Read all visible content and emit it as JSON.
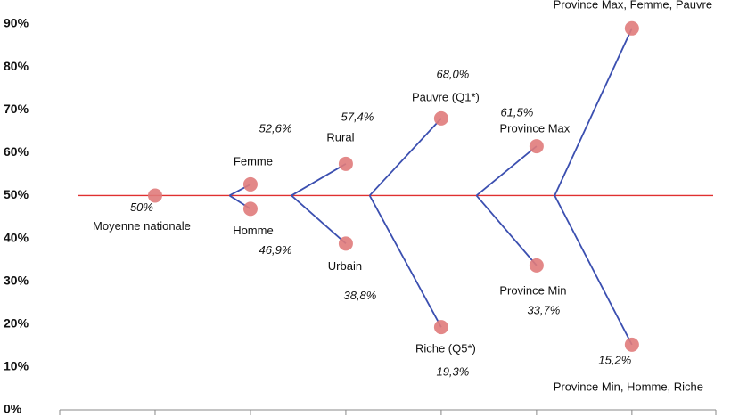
{
  "chart_data": {
    "type": "scatter",
    "x": [
      1,
      2,
      2,
      3,
      3,
      4,
      4,
      5,
      5,
      6,
      6
    ],
    "values": [
      50,
      52.6,
      46.9,
      57.4,
      38.8,
      68.0,
      19.3,
      61.5,
      33.7,
      89,
      15.2
    ],
    "labels": [
      "Moyenne nationale",
      "Femme",
      "Homme",
      "Rural",
      "Urbain",
      "Pauvre (Q1*)",
      "Riche (Q5*)",
      "Province Max",
      "Province Min",
      "Province Max, Femme, Pauvre",
      "Province Min, Homme, Riche"
    ],
    "value_labels": [
      "50%",
      "52,6%",
      "46,9%",
      "57,4%",
      "38,8%",
      "68,0%",
      "19,3%",
      "61,5%",
      "33,7%",
      null,
      "15,2%"
    ],
    "color": "#e07b7b",
    "line_color": "#3b4fb0",
    "reference_color": "#e03030",
    "xlim": [
      0,
      6.88
    ],
    "xticks": [
      0,
      1,
      2,
      3,
      4,
      5,
      6
    ],
    "ylim": [
      0,
      90
    ],
    "yticks": [
      {
        "value": 0,
        "label": "0%"
      },
      {
        "value": 10,
        "label": "10%"
      },
      {
        "value": 20,
        "label": "20%"
      },
      {
        "value": 30,
        "label": "30%"
      },
      {
        "value": 40,
        "label": "40%"
      },
      {
        "value": 50,
        "label": "50%"
      },
      {
        "value": 60,
        "label": "60%"
      },
      {
        "value": 70,
        "label": "70%"
      },
      {
        "value": 80,
        "label": "80%"
      },
      {
        "value": 90,
        "label": "90%"
      }
    ]
  }
}
